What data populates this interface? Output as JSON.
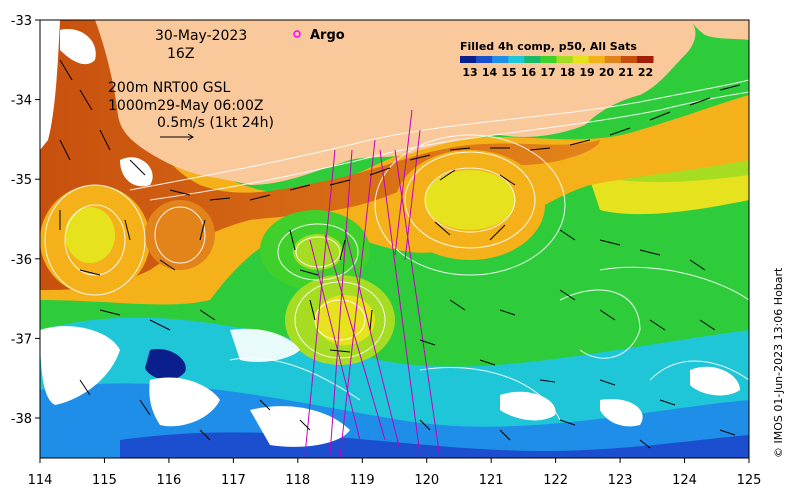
{
  "map": {
    "date": "30-May-2023",
    "hour": "16Z",
    "contour_note": "200m  NRT00 GSL",
    "contour_note2": "1000m29-May 06:00Z",
    "vector_scale": "0.5m/s (1kt 24h)",
    "argo_label": "Argo",
    "product_title": "Filled 4h comp, p50, All Sats",
    "credit": "© IMOS 01-Jun-2023 13:06 Hobart",
    "lon_ticks": [
      "114",
      "115",
      "116",
      "117",
      "118",
      "119",
      "120",
      "121",
      "122",
      "123",
      "124",
      "125"
    ],
    "lat_ticks": [
      "-33",
      "-34",
      "-35",
      "-36",
      "-37",
      "-38"
    ],
    "colorbar_ticks": [
      "13",
      "14",
      "15",
      "16",
      "17",
      "18",
      "19",
      "20",
      "21",
      "22"
    ],
    "colors": {
      "land": "#f9c89b",
      "sst_scale": [
        "#0a1e8c",
        "#1b4fd0",
        "#1f8ee8",
        "#1fc6d8",
        "#19b86a",
        "#3fd02c",
        "#a6dc22",
        "#e6e21e",
        "#f4b11a",
        "#e3841a",
        "#c8500e",
        "#a01f0a"
      ],
      "argo": "#ff00ff",
      "track": "#c000c0"
    }
  }
}
